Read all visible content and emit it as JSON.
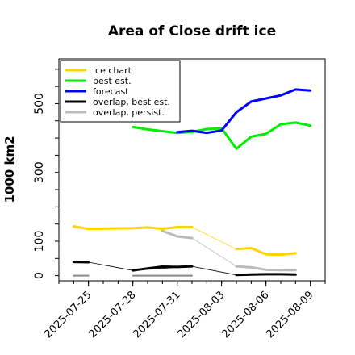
{
  "chart_data": {
    "type": "line",
    "title": "Area of Close drift ice",
    "ylabel": "1000 km2",
    "xlabel": "",
    "ylim": [
      -15,
      630
    ],
    "yticks": [
      0,
      100,
      300,
      500
    ],
    "xticks": [
      "2025-07-25",
      "2025-07-28",
      "2025-07-31",
      "2025-08-03",
      "2025-08-06",
      "2025-08-09"
    ],
    "xtick_colors": [
      "#000000",
      "#000000",
      "#007a00",
      "#000000",
      "#000000",
      "#000000"
    ],
    "xlim": [
      "2025-07-23",
      "2025-08-10"
    ],
    "grid": false,
    "legend_position": "top-left",
    "series": [
      {
        "name": "ice chart",
        "color": "#ffd400",
        "width": 3,
        "points": [
          [
            "2025-07-24",
            143
          ],
          [
            "2025-07-25",
            136
          ],
          [
            "2025-07-28",
            138
          ],
          [
            "2025-07-29",
            140
          ],
          [
            "2025-07-30",
            136
          ],
          [
            "2025-07-31",
            141
          ],
          [
            "2025-08-01",
            141
          ]
        ]
      },
      {
        "name": "ice chart (continued)",
        "color": "#ffd400",
        "width": 3,
        "points": [
          [
            "2025-08-04",
            77
          ],
          [
            "2025-08-05",
            80
          ],
          [
            "2025-08-06",
            62
          ],
          [
            "2025-08-07",
            61
          ],
          [
            "2025-08-08",
            65
          ]
        ]
      },
      {
        "name": "ice chart connector",
        "color": "#ffd400",
        "width": 0.8,
        "points": [
          [
            "2025-07-25",
            136
          ],
          [
            "2025-07-28",
            138
          ],
          [
            "2025-08-01",
            141
          ],
          [
            "2025-08-04",
            77
          ]
        ]
      },
      {
        "name": "best est.",
        "color": "#00ee00",
        "width": 3,
        "points": [
          [
            "2025-07-28",
            432
          ],
          [
            "2025-07-29",
            425
          ],
          [
            "2025-07-31",
            415
          ],
          [
            "2025-08-01",
            418
          ],
          [
            "2025-08-02",
            426
          ],
          [
            "2025-08-03",
            428
          ],
          [
            "2025-08-04",
            369
          ],
          [
            "2025-08-05",
            404
          ],
          [
            "2025-08-06",
            412
          ],
          [
            "2025-08-07",
            440
          ],
          [
            "2025-08-08",
            445
          ],
          [
            "2025-08-09",
            436
          ]
        ]
      },
      {
        "name": "forecast",
        "color": "#0000ff",
        "width": 3,
        "points": [
          [
            "2025-07-31",
            417
          ],
          [
            "2025-08-01",
            421
          ],
          [
            "2025-08-02",
            415
          ],
          [
            "2025-08-03",
            422
          ],
          [
            "2025-08-04",
            475
          ],
          [
            "2025-08-05",
            506
          ],
          [
            "2025-08-06",
            515
          ],
          [
            "2025-08-07",
            524
          ],
          [
            "2025-08-08",
            541
          ],
          [
            "2025-08-09",
            538
          ]
        ]
      },
      {
        "name": "overlap, best est.",
        "color": "#000000",
        "width": 3,
        "points": [
          [
            "2025-07-28",
            15
          ],
          [
            "2025-07-29",
            21
          ],
          [
            "2025-07-30",
            26
          ],
          [
            "2025-07-31",
            25
          ],
          [
            "2025-08-01",
            27
          ]
        ]
      },
      {
        "name": "overlap, best est. (start)",
        "color": "#000000",
        "width": 3,
        "points": [
          [
            "2025-07-24",
            40
          ],
          [
            "2025-07-25",
            39
          ]
        ]
      },
      {
        "name": "overlap, best est. (end)",
        "color": "#000000",
        "width": 3,
        "points": [
          [
            "2025-08-04",
            2
          ],
          [
            "2025-08-05",
            3
          ],
          [
            "2025-08-06",
            4
          ],
          [
            "2025-08-07",
            4
          ],
          [
            "2025-08-08",
            3
          ]
        ]
      },
      {
        "name": "overlap, best est. connector",
        "color": "#000000",
        "width": 0.8,
        "points": [
          [
            "2025-07-25",
            39
          ],
          [
            "2025-07-28",
            15
          ],
          [
            "2025-08-01",
            27
          ],
          [
            "2025-08-04",
            2
          ]
        ]
      },
      {
        "name": "overlap, persist.",
        "color": "#bbbbbb",
        "width": 3,
        "points": [
          [
            "2025-07-30",
            130
          ],
          [
            "2025-07-31",
            114
          ],
          [
            "2025-08-01",
            109
          ]
        ]
      },
      {
        "name": "overlap, persist. (end)",
        "color": "#bbbbbb",
        "width": 3,
        "points": [
          [
            "2025-08-04",
            27
          ],
          [
            "2025-08-05",
            24
          ],
          [
            "2025-08-06",
            17
          ],
          [
            "2025-08-07",
            16
          ],
          [
            "2025-08-08",
            16
          ]
        ]
      },
      {
        "name": "overlap, persist. connector",
        "color": "#bbbbbb",
        "width": 0.8,
        "points": [
          [
            "2025-08-01",
            109
          ],
          [
            "2025-08-04",
            27
          ]
        ]
      },
      {
        "name": "overlap, persist. (base)",
        "color": "#888888",
        "width": 2,
        "points": [
          [
            "2025-07-24",
            0
          ],
          [
            "2025-07-25",
            0
          ]
        ]
      },
      {
        "name": "overlap, persist. (base 2)",
        "color": "#888888",
        "width": 2,
        "points": [
          [
            "2025-07-28",
            0
          ],
          [
            "2025-08-01",
            0
          ]
        ]
      }
    ],
    "legend": [
      {
        "label": "ice chart",
        "color": "#ffd400"
      },
      {
        "label": "best est.",
        "color": "#00ee00"
      },
      {
        "label": "forecast",
        "color": "#0000ff"
      },
      {
        "label": "overlap, best est.",
        "color": "#000000"
      },
      {
        "label": "overlap, persist.",
        "color": "#bbbbbb"
      }
    ]
  }
}
